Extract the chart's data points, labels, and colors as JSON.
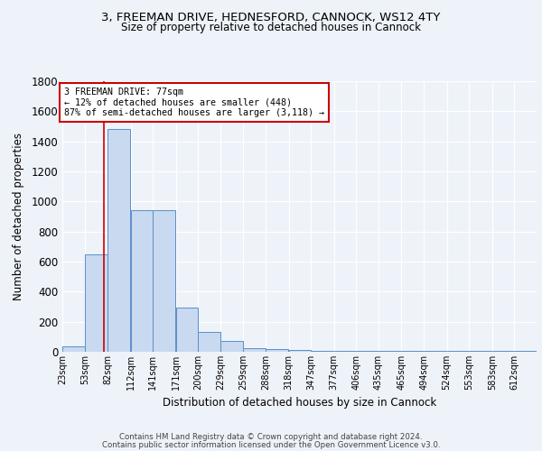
{
  "title1": "3, FREEMAN DRIVE, HEDNESFORD, CANNOCK, WS12 4TY",
  "title2": "Size of property relative to detached houses in Cannock",
  "xlabel": "Distribution of detached houses by size in Cannock",
  "ylabel": "Number of detached properties",
  "bin_labels": [
    "23sqm",
    "53sqm",
    "82sqm",
    "112sqm",
    "141sqm",
    "171sqm",
    "200sqm",
    "229sqm",
    "259sqm",
    "288sqm",
    "318sqm",
    "347sqm",
    "377sqm",
    "406sqm",
    "435sqm",
    "465sqm",
    "494sqm",
    "524sqm",
    "553sqm",
    "583sqm",
    "612sqm"
  ],
  "bar_heights": [
    35,
    650,
    1480,
    940,
    940,
    295,
    130,
    70,
    25,
    20,
    15,
    5,
    5,
    5,
    5,
    5,
    5,
    5,
    5,
    5,
    5
  ],
  "bar_color": "#c8d9f0",
  "bar_edge_color": "#5b8fc9",
  "vline_color": "#cc0000",
  "annotation_title": "3 FREEMAN DRIVE: 77sqm",
  "annotation_line1": "← 12% of detached houses are smaller (448)",
  "annotation_line2": "87% of semi-detached houses are larger (3,118) →",
  "annotation_box_color": "#ffffff",
  "annotation_box_edge_color": "#cc0000",
  "ylim": [
    0,
    1800
  ],
  "yticks": [
    0,
    200,
    400,
    600,
    800,
    1000,
    1200,
    1400,
    1600,
    1800
  ],
  "footer1": "Contains HM Land Registry data © Crown copyright and database right 2024.",
  "footer2": "Contains public sector information licensed under the Open Government Licence v3.0.",
  "background_color": "#eef2f9"
}
